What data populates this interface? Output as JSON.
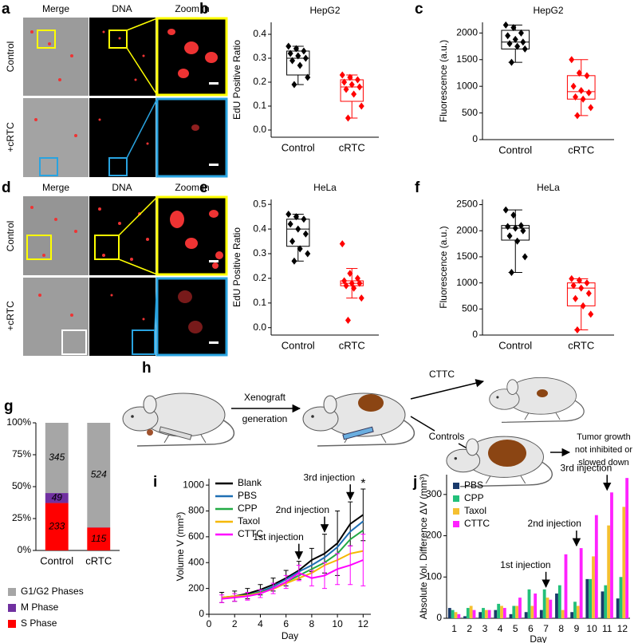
{
  "figure_a": {
    "label": "a",
    "headers": [
      "Merge",
      "DNA",
      "Zoom in"
    ],
    "rows": [
      "Control",
      "+cRTC"
    ]
  },
  "figure_d": {
    "label": "d",
    "headers": [
      "Merge",
      "DNA",
      "Zoom in"
    ],
    "rows": [
      "Control",
      "+cRTC"
    ]
  },
  "figure_h": {
    "label": "h",
    "texts": [
      "Xenograft",
      "generation",
      "CTTC",
      "Controls",
      "Tumor growth",
      "not inhibited or",
      "slowed down"
    ]
  },
  "chart_data": [
    {
      "panel": "b",
      "type": "box",
      "title": "HepG2",
      "ylabel": "EdU Positive Ratio",
      "categories": [
        "Control",
        "cRTC"
      ],
      "colors": [
        "#000000",
        "#ff0000"
      ],
      "ylim": [
        -0.03,
        0.45
      ],
      "yticks": [
        {
          "value": 0,
          "label": "0.0"
        },
        0.1,
        0.2,
        0.3,
        0.4
      ],
      "boxes": [
        {
          "min": 0.19,
          "q1": 0.23,
          "median": 0.3,
          "q3": 0.33,
          "max": 0.35,
          "points": [
            0.35,
            0.34,
            0.33,
            0.32,
            0.31,
            0.3,
            0.29,
            0.27,
            0.22,
            0.19
          ]
        },
        {
          "min": 0.05,
          "q1": 0.12,
          "median": 0.18,
          "q3": 0.21,
          "max": 0.23,
          "points": [
            0.23,
            0.22,
            0.21,
            0.2,
            0.19,
            0.18,
            0.17,
            0.15,
            0.1,
            0.05
          ]
        }
      ]
    },
    {
      "panel": "c",
      "type": "box",
      "title": "HepG2",
      "ylabel": "Fluorescence (a.u.)",
      "categories": [
        "Control",
        "cRTC"
      ],
      "colors": [
        "#000000",
        "#ff0000"
      ],
      "ylim": [
        0,
        2200
      ],
      "yticks": [
        0,
        500,
        1000,
        1500,
        2000
      ],
      "boxes": [
        {
          "min": 1450,
          "q1": 1700,
          "median": 1830,
          "q3": 2050,
          "max": 2150,
          "points": [
            2150,
            2100,
            2000,
            1950,
            1880,
            1830,
            1800,
            1750,
            1700,
            1450
          ]
        },
        {
          "min": 450,
          "q1": 760,
          "median": 900,
          "q3": 1200,
          "max": 1500,
          "points": [
            1500,
            1250,
            1200,
            1000,
            920,
            880,
            800,
            760,
            600,
            450
          ]
        }
      ]
    },
    {
      "panel": "e",
      "type": "box",
      "title": "HeLa",
      "ylabel": "EdU Positive Ratio",
      "categories": [
        "Control",
        "cRTC"
      ],
      "colors": [
        "#000000",
        "#ff0000"
      ],
      "ylim": [
        -0.03,
        0.52
      ],
      "yticks": [
        {
          "value": 0,
          "label": "0.0"
        },
        0.1,
        0.2,
        0.3,
        0.4,
        0.5
      ],
      "boxes": [
        {
          "min": 0.27,
          "q1": 0.33,
          "median": 0.4,
          "q3": 0.44,
          "max": 0.46,
          "points": [
            0.46,
            0.45,
            0.44,
            0.42,
            0.4,
            0.38,
            0.35,
            0.32,
            0.3,
            0.27
          ]
        },
        {
          "min": 0.12,
          "q1": 0.17,
          "median": 0.18,
          "q3": 0.19,
          "max": 0.24,
          "points": [
            0.34,
            0.22,
            0.2,
            0.19,
            0.18,
            0.18,
            0.17,
            0.16,
            0.12,
            0.03
          ]
        }
      ]
    },
    {
      "panel": "f",
      "type": "box",
      "title": "HeLa",
      "ylabel": "Fluorescence (a.u.)",
      "categories": [
        "Control",
        "cRTC"
      ],
      "colors": [
        "#000000",
        "#ff0000"
      ],
      "ylim": [
        0,
        2600
      ],
      "yticks": [
        0,
        500,
        1000,
        1500,
        2000,
        2500
      ],
      "boxes": [
        {
          "min": 1200,
          "q1": 1820,
          "median": 2050,
          "q3": 2100,
          "max": 2400,
          "points": [
            2400,
            2300,
            2100,
            2080,
            2050,
            2000,
            1900,
            1800,
            1500,
            1200
          ]
        },
        {
          "min": 100,
          "q1": 560,
          "median": 900,
          "q3": 1000,
          "max": 1080,
          "points": [
            1080,
            1050,
            1000,
            950,
            900,
            800,
            700,
            560,
            400,
            100
          ]
        }
      ]
    },
    {
      "panel": "g",
      "type": "stacked_percent_bar",
      "categories": [
        "Control",
        "cRTC"
      ],
      "ylim": [
        0,
        100
      ],
      "yticks": [
        {
          "value": 0,
          "label": "0%"
        },
        {
          "value": 25,
          "label": "25%"
        },
        {
          "value": 50,
          "label": "50%"
        },
        {
          "value": 75,
          "label": "75%"
        },
        {
          "value": 100,
          "label": "100%"
        }
      ],
      "series": [
        {
          "name": "S Phase",
          "color": "#ff0000",
          "values": [
            233,
            115
          ]
        },
        {
          "name": "M Phase",
          "color": "#7030a0",
          "values": [
            49,
            1
          ]
        },
        {
          "name": "G1/G2 Phases",
          "color": "#a6a6a6",
          "values": [
            345,
            524
          ]
        }
      ]
    },
    {
      "panel": "i",
      "type": "line",
      "xlabel": "Day",
      "ylabel": "Volume V (mm³)",
      "x": [
        1,
        2,
        3,
        4,
        5,
        6,
        7,
        8,
        9,
        10,
        11,
        12
      ],
      "xlim": [
        0,
        12.6
      ],
      "xticks": [
        0,
        2,
        4,
        6,
        8,
        10,
        12
      ],
      "ylim": [
        0,
        1050
      ],
      "yticks": [
        0,
        200,
        400,
        600,
        800,
        1000
      ],
      "legend": "upper left",
      "series": [
        {
          "name": "Blank",
          "color": "#000000",
          "values": [
            130,
            140,
            160,
            190,
            230,
            280,
            340,
            420,
            470,
            550,
            700,
            770
          ],
          "errors": [
            40,
            40,
            40,
            40,
            50,
            60,
            70,
            90,
            150,
            250,
            170,
            200
          ]
        },
        {
          "name": "PBS",
          "color": "#1f6fb4",
          "values": [
            120,
            135,
            150,
            175,
            215,
            270,
            330,
            380,
            440,
            520,
            640,
            720
          ]
        },
        {
          "name": "CPP",
          "color": "#22aa44",
          "values": [
            125,
            140,
            150,
            170,
            200,
            250,
            300,
            350,
            400,
            470,
            580,
            650
          ]
        },
        {
          "name": "Taxol",
          "color": "#f5b800",
          "values": [
            130,
            140,
            145,
            165,
            195,
            240,
            280,
            320,
            380,
            420,
            470,
            490
          ]
        },
        {
          "name": "CTTC",
          "color": "#ff00ff",
          "values": [
            120,
            130,
            140,
            160,
            200,
            250,
            320,
            280,
            300,
            350,
            380,
            420
          ],
          "errors": [
            30,
            30,
            30,
            30,
            40,
            50,
            60,
            60,
            100,
            120,
            150,
            200
          ]
        }
      ],
      "annotations": [
        {
          "text": "1st injection",
          "x": 7
        },
        {
          "text": "2nd injection",
          "x": 9
        },
        {
          "text": "3rd injection",
          "x": 11
        },
        {
          "text": "*",
          "x": 12,
          "color": "#ff0000"
        }
      ]
    },
    {
      "panel": "j",
      "type": "grouped_bar",
      "xlabel": "Day",
      "ylabel": "Absolute Vol. Difference ΔV (mm³)",
      "categories": [
        "1",
        "2",
        "3",
        "4",
        "5",
        "6",
        "7",
        "8",
        "9",
        "10",
        "11",
        "12"
      ],
      "ylim": [
        0,
        348
      ],
      "yticks": [
        0,
        100,
        200,
        300
      ],
      "legend": "upper left",
      "series": [
        {
          "name": "PBS",
          "color": "#1a3a6b",
          "values": [
            25,
            5,
            15,
            20,
            10,
            15,
            20,
            60,
            15,
            95,
            65,
            48
          ]
        },
        {
          "name": "CPP",
          "color": "#22c07a",
          "values": [
            20,
            25,
            25,
            35,
            30,
            70,
            70,
            80,
            40,
            95,
            80,
            100
          ]
        },
        {
          "name": "Taxol",
          "color": "#f5c030",
          "values": [
            15,
            30,
            20,
            30,
            30,
            30,
            50,
            20,
            30,
            150,
            225,
            270
          ]
        },
        {
          "name": "CTTC",
          "color": "#ff22ff",
          "values": [
            10,
            20,
            20,
            25,
            50,
            60,
            45,
            155,
            170,
            250,
            305,
            340
          ]
        }
      ],
      "annotations": [
        {
          "text": "1st injection",
          "x": "7"
        },
        {
          "text": "2nd injection",
          "x": "9"
        },
        {
          "text": "3rd injection",
          "x": "11"
        }
      ]
    }
  ]
}
